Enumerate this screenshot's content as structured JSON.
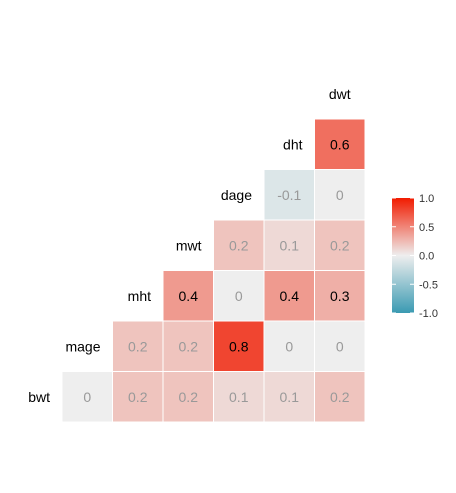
{
  "chart_data": {
    "type": "heatmap",
    "title": "",
    "variables": [
      "bwt",
      "mage",
      "mht",
      "mwt",
      "dage",
      "dht",
      "dwt"
    ],
    "cells": [
      {
        "row": "mage",
        "col": "bwt",
        "value": 0,
        "label": "0"
      },
      {
        "row": "mht",
        "col": "bwt",
        "value": 0.2,
        "label": "0.2"
      },
      {
        "row": "mht",
        "col": "mage",
        "value": 0.2,
        "label": "0.2"
      },
      {
        "row": "mwt",
        "col": "bwt",
        "value": 0.2,
        "label": "0.2"
      },
      {
        "row": "mwt",
        "col": "mage",
        "value": 0.2,
        "label": "0.2"
      },
      {
        "row": "mwt",
        "col": "mht",
        "value": 0.4,
        "label": "0.4"
      },
      {
        "row": "dage",
        "col": "bwt",
        "value": 0.1,
        "label": "0.1"
      },
      {
        "row": "dage",
        "col": "mage",
        "value": 0.8,
        "label": "0.8"
      },
      {
        "row": "dage",
        "col": "mht",
        "value": 0,
        "label": "0"
      },
      {
        "row": "dage",
        "col": "mwt",
        "value": 0.2,
        "label": "0.2"
      },
      {
        "row": "dht",
        "col": "bwt",
        "value": 0.1,
        "label": "0.1"
      },
      {
        "row": "dht",
        "col": "mage",
        "value": 0,
        "label": "0"
      },
      {
        "row": "dht",
        "col": "mht",
        "value": 0.4,
        "label": "0.4"
      },
      {
        "row": "dht",
        "col": "mwt",
        "value": 0.1,
        "label": "0.1"
      },
      {
        "row": "dht",
        "col": "dage",
        "value": -0.1,
        "label": "-0.1"
      },
      {
        "row": "dwt",
        "col": "bwt",
        "value": 0.2,
        "label": "0.2"
      },
      {
        "row": "dwt",
        "col": "mage",
        "value": 0,
        "label": "0"
      },
      {
        "row": "dwt",
        "col": "mht",
        "value": 0.3,
        "label": "0.3"
      },
      {
        "row": "dwt",
        "col": "mwt",
        "value": 0.2,
        "label": "0.2"
      },
      {
        "row": "dwt",
        "col": "dage",
        "value": 0,
        "label": "0"
      },
      {
        "row": "dwt",
        "col": "dht",
        "value": 0.6,
        "label": "0.6"
      }
    ],
    "color_scale": {
      "low": "#3A9AB2",
      "mid": "#EEEEEE",
      "high": "#F11B00",
      "range": [
        -1,
        1
      ]
    },
    "legend": {
      "position": "right",
      "ticks": [
        {
          "value": 1.0,
          "label": "1.0"
        },
        {
          "value": 0.5,
          "label": "0.5"
        },
        {
          "value": 0.0,
          "label": "0.0"
        },
        {
          "value": -0.5,
          "label": "-0.5"
        },
        {
          "value": -1.0,
          "label": "-1.0"
        }
      ]
    },
    "text_colors": {
      "strong": "#000000",
      "weak": "#999999"
    }
  }
}
